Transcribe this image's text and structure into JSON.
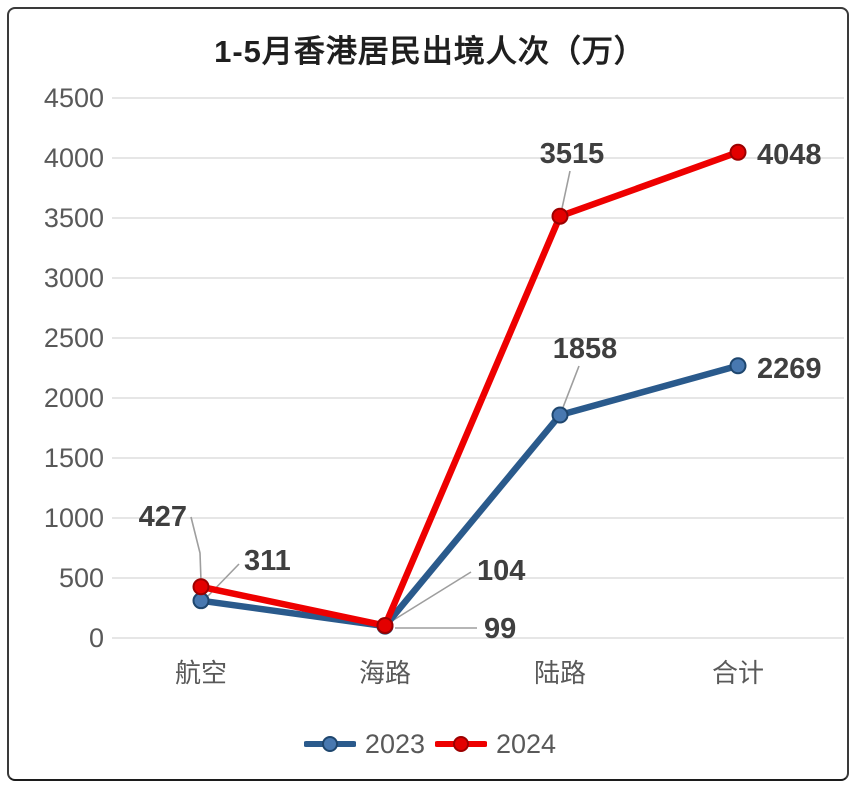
{
  "chart_data": {
    "type": "line",
    "title": "1-5月香港居民出境人次（万）",
    "categories": [
      "航空",
      "海路",
      "陆路",
      "合计"
    ],
    "series": [
      {
        "name": "2023",
        "color": "#2a5a8c",
        "marker_fill": "#4878b0",
        "marker_stroke": "#1e466e",
        "values": [
          311,
          99,
          1858,
          2269
        ],
        "data_labels": [
          "311",
          "99",
          "1858",
          "2269"
        ]
      },
      {
        "name": "2024",
        "color": "#ee0000",
        "marker_fill": "#e30000",
        "marker_stroke": "#9c0000",
        "values": [
          427,
          104,
          3515,
          4048
        ],
        "data_labels": [
          "427",
          "104",
          "3515",
          "4048"
        ]
      }
    ],
    "y_axis": {
      "min": 0,
      "max": 4500,
      "step": 500,
      "tick_labels": [
        "0",
        "500",
        "1000",
        "1500",
        "2000",
        "2500",
        "3000",
        "3500",
        "4000",
        "4500"
      ]
    },
    "grid": true,
    "legend_position": "bottom",
    "colors": {
      "gridline": "#dedede",
      "axis_text": "#595959",
      "data_label_text": "#3f3f3f",
      "leader_line": "#9e9e9e",
      "title_text": "#1f1f1f"
    }
  }
}
